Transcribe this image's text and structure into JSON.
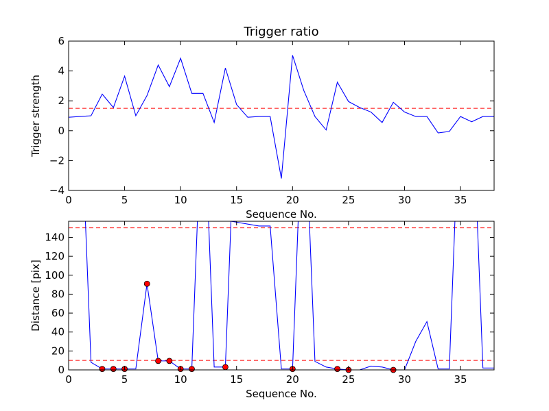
{
  "figure": {
    "background": "#ffffff"
  },
  "chart_data": [
    {
      "type": "line",
      "title": "Trigger ratio",
      "xlabel": "Sequence No.",
      "ylabel": "Trigger strength",
      "xlim": [
        0,
        38
      ],
      "ylim": [
        -4,
        6
      ],
      "xticks": [
        0,
        5,
        10,
        15,
        20,
        25,
        30,
        35
      ],
      "yticks": [
        -4,
        -2,
        0,
        2,
        4,
        6
      ],
      "ytick_labels": [
        "−4",
        "−2",
        "0",
        "2",
        "4",
        "6"
      ],
      "grid": false,
      "series": [
        {
          "color": "#0000ff",
          "x": [
            0,
            1,
            2,
            3,
            4,
            5,
            6,
            7,
            8,
            9,
            10,
            11,
            12,
            13,
            14,
            15,
            16,
            17,
            18,
            19,
            20,
            21,
            22,
            23,
            24,
            25,
            26,
            27,
            28,
            29,
            30,
            31,
            32,
            33,
            34,
            35,
            36,
            37,
            38
          ],
          "y": [
            0.9,
            0.95,
            1.0,
            2.45,
            1.55,
            3.65,
            1.0,
            2.35,
            4.4,
            2.95,
            4.85,
            2.5,
            2.5,
            0.55,
            4.2,
            1.75,
            0.9,
            0.95,
            0.95,
            -3.2,
            5.05,
            2.7,
            0.95,
            0.05,
            3.25,
            1.95,
            1.55,
            1.25,
            0.55,
            1.9,
            1.25,
            0.95,
            0.95,
            -0.15,
            -0.05,
            0.95,
            0.6,
            0.95,
            0.95
          ]
        }
      ],
      "hlines": [
        {
          "y": 1.5,
          "color": "#ff0000",
          "style": "dashed"
        }
      ]
    },
    {
      "type": "line",
      "title": "",
      "xlabel": "Sequence No.",
      "ylabel": "Distance [pix]",
      "xlim": [
        0,
        38
      ],
      "ylim": [
        0,
        157
      ],
      "xticks": [
        0,
        5,
        10,
        15,
        20,
        25,
        30,
        35
      ],
      "yticks": [
        0,
        20,
        40,
        60,
        80,
        100,
        120,
        140
      ],
      "grid": false,
      "series": [
        {
          "color": "#0000ff",
          "x": [
            1.5,
            2,
            3,
            4,
            5,
            6,
            7,
            8,
            9,
            10,
            11,
            11.5,
            12.5,
            13,
            14,
            14.5,
            17,
            18,
            19,
            20,
            20.5,
            21.5,
            22,
            23,
            24,
            25,
            26,
            27,
            28,
            29,
            30,
            31,
            32,
            33,
            34,
            34.5,
            36.5,
            37,
            38
          ],
          "y": [
            157,
            8,
            1,
            1,
            1,
            1,
            91,
            9.5,
            9.5,
            1,
            1,
            157,
            157,
            3,
            3,
            157,
            152,
            152,
            1,
            1,
            157,
            157,
            9,
            3,
            1,
            0,
            0,
            4,
            3,
            0,
            0,
            30,
            51,
            1,
            1,
            157,
            157,
            2,
            2
          ]
        }
      ],
      "markers": {
        "color": "#ff0000",
        "x": [
          3,
          4,
          5,
          7,
          8,
          9,
          10,
          11,
          14,
          20,
          24,
          25,
          29
        ],
        "y": [
          1,
          1,
          1,
          91,
          9.5,
          9.5,
          1,
          1,
          3,
          1,
          1,
          0,
          0
        ]
      },
      "hlines": [
        {
          "y": 150,
          "color": "#ff0000",
          "style": "dashed"
        },
        {
          "y": 10,
          "color": "#ff0000",
          "style": "dashed"
        }
      ]
    }
  ]
}
